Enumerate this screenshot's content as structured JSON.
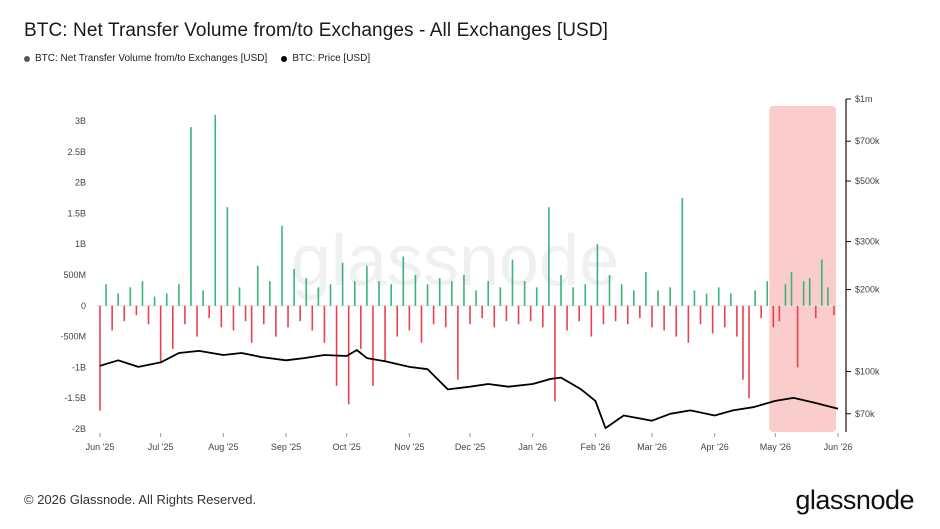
{
  "header": {
    "title": "BTC: Net Transfer Volume from/to Exchanges - All Exchanges [USD]"
  },
  "legend": [
    {
      "label": "BTC: Net Transfer Volume from/to Exchanges [USD]",
      "color": "#555555"
    },
    {
      "label": "BTC: Price [USD]",
      "color": "#000000"
    }
  ],
  "footer": {
    "copyright": "© 2026 Glassnode. All Rights Reserved.",
    "logo": "glassnode"
  },
  "watermark": "glassnode",
  "colors": {
    "positive": "#3cb37a",
    "negative": "#e8424d",
    "price": "#000000",
    "highlight": "#f9c3c3"
  },
  "chart_data": {
    "type": "bar",
    "title": "BTC: Net Transfer Volume from/to Exchanges - All Exchanges [USD]",
    "x_tick_labels": [
      "Jun '25",
      "Jul '25",
      "Aug '25",
      "Sep '25",
      "Oct '25",
      "Nov '25",
      "Dec '25",
      "Jan '26",
      "Feb '26",
      "Mar '26",
      "Apr '26",
      "May '26",
      "Jun '26"
    ],
    "x_range": [
      "2025-06-01",
      "2026-06-01"
    ],
    "y_left": {
      "ticks": [
        3000000000,
        2500000000,
        2000000000,
        1500000000,
        1000000000,
        500000000,
        0,
        -500000000,
        -1000000000,
        -1500000000,
        -2000000000
      ],
      "tick_labels": [
        "3B",
        "2.5B",
        "2B",
        "1.5B",
        "1B",
        "500M",
        "0",
        "-500M",
        "-1B",
        "-1.5B",
        "-2B"
      ],
      "range": [
        -2000000000,
        3000000000
      ]
    },
    "y_right": {
      "scale": "log",
      "ticks": [
        1000000,
        700000,
        500000,
        300000,
        200000,
        100000,
        70000
      ],
      "tick_labels": [
        "$1m",
        "$700k",
        "$500k",
        "$300k",
        "$200k",
        "$100k",
        "$70k"
      ],
      "range": [
        60000,
        1000000
      ]
    },
    "highlight_range": [
      "2026-05-01",
      "2026-06-01"
    ],
    "series": [
      {
        "name": "BTC: Net Transfer Volume from/to Exchanges [USD]",
        "type": "bar",
        "axis": "left",
        "x": [
          "2025-06-01",
          "2025-06-04",
          "2025-06-07",
          "2025-06-10",
          "2025-06-13",
          "2025-06-16",
          "2025-06-19",
          "2025-06-22",
          "2025-06-25",
          "2025-06-28",
          "2025-07-01",
          "2025-07-04",
          "2025-07-07",
          "2025-07-10",
          "2025-07-13",
          "2025-07-16",
          "2025-07-19",
          "2025-07-22",
          "2025-07-25",
          "2025-07-28",
          "2025-07-31",
          "2025-08-03",
          "2025-08-06",
          "2025-08-09",
          "2025-08-12",
          "2025-08-15",
          "2025-08-18",
          "2025-08-21",
          "2025-08-24",
          "2025-08-27",
          "2025-08-30",
          "2025-09-02",
          "2025-09-05",
          "2025-09-08",
          "2025-09-11",
          "2025-09-14",
          "2025-09-17",
          "2025-09-20",
          "2025-09-23",
          "2025-09-26",
          "2025-09-29",
          "2025-10-02",
          "2025-10-05",
          "2025-10-08",
          "2025-10-11",
          "2025-10-14",
          "2025-10-17",
          "2025-10-20",
          "2025-10-23",
          "2025-10-26",
          "2025-10-29",
          "2025-11-01",
          "2025-11-04",
          "2025-11-07",
          "2025-11-10",
          "2025-11-13",
          "2025-11-16",
          "2025-11-19",
          "2025-11-22",
          "2025-11-25",
          "2025-11-28",
          "2025-12-01",
          "2025-12-04",
          "2025-12-07",
          "2025-12-10",
          "2025-12-13",
          "2025-12-16",
          "2025-12-19",
          "2025-12-22",
          "2025-12-25",
          "2025-12-28",
          "2025-12-31",
          "2026-01-03",
          "2026-01-06",
          "2026-01-09",
          "2026-01-12",
          "2026-01-15",
          "2026-01-18",
          "2026-01-21",
          "2026-01-24",
          "2026-01-27",
          "2026-01-30",
          "2026-02-02",
          "2026-02-05",
          "2026-02-08",
          "2026-02-11",
          "2026-02-14",
          "2026-02-17",
          "2026-02-20",
          "2026-02-23",
          "2026-02-26",
          "2026-03-01",
          "2026-03-04",
          "2026-03-07",
          "2026-03-10",
          "2026-03-13",
          "2026-03-16",
          "2026-03-19",
          "2026-03-22",
          "2026-03-25",
          "2026-03-28",
          "2026-03-31",
          "2026-04-03",
          "2026-04-06",
          "2026-04-09",
          "2026-04-12",
          "2026-04-15",
          "2026-04-18",
          "2026-04-21",
          "2026-04-24",
          "2026-04-27",
          "2026-04-30",
          "2026-05-03",
          "2026-05-06",
          "2026-05-09",
          "2026-05-12",
          "2026-05-15",
          "2026-05-18",
          "2026-05-21",
          "2026-05-24",
          "2026-05-27",
          "2026-05-30"
        ],
        "values": [
          -1700000000,
          350000000,
          -400000000,
          200000000,
          -250000000,
          300000000,
          -150000000,
          400000000,
          -300000000,
          150000000,
          -900000000,
          200000000,
          -700000000,
          350000000,
          -300000000,
          2900000000,
          -500000000,
          250000000,
          -200000000,
          3100000000,
          -350000000,
          1600000000,
          -400000000,
          300000000,
          -250000000,
          -600000000,
          650000000,
          -300000000,
          400000000,
          -500000000,
          1300000000,
          -350000000,
          600000000,
          -250000000,
          450000000,
          -400000000,
          300000000,
          -600000000,
          350000000,
          -1300000000,
          700000000,
          -1600000000,
          400000000,
          -700000000,
          650000000,
          -1300000000,
          400000000,
          -900000000,
          350000000,
          -500000000,
          800000000,
          -400000000,
          500000000,
          -600000000,
          350000000,
          -300000000,
          450000000,
          -350000000,
          400000000,
          -1200000000,
          500000000,
          -300000000,
          250000000,
          -200000000,
          400000000,
          -350000000,
          300000000,
          -250000000,
          750000000,
          -300000000,
          400000000,
          -250000000,
          300000000,
          -350000000,
          1600000000,
          -1550000000,
          500000000,
          -400000000,
          300000000,
          -250000000,
          350000000,
          -500000000,
          1000000000,
          -300000000,
          500000000,
          -250000000,
          350000000,
          -300000000,
          250000000,
          -200000000,
          550000000,
          -350000000,
          250000000,
          -400000000,
          300000000,
          -500000000,
          1750000000,
          -600000000,
          250000000,
          -300000000,
          200000000,
          -450000000,
          300000000,
          -350000000,
          200000000,
          -500000000,
          -1200000000,
          -1500000000,
          250000000,
          -200000000,
          400000000,
          -350000000,
          -250000000,
          350000000,
          550000000,
          -1000000000,
          400000000,
          450000000,
          -200000000,
          750000000,
          300000000,
          -150000000
        ],
        "color_positive": "#3cb37a",
        "color_negative": "#e8424d"
      },
      {
        "name": "BTC: Price [USD]",
        "type": "line",
        "axis": "right",
        "x": [
          "2025-06-01",
          "2025-06-10",
          "2025-06-20",
          "2025-07-01",
          "2025-07-10",
          "2025-07-20",
          "2025-08-01",
          "2025-08-10",
          "2025-08-20",
          "2025-09-01",
          "2025-09-10",
          "2025-09-20",
          "2025-10-01",
          "2025-10-06",
          "2025-10-11",
          "2025-10-20",
          "2025-11-01",
          "2025-11-10",
          "2025-11-20",
          "2025-12-01",
          "2025-12-10",
          "2025-12-20",
          "2026-01-01",
          "2026-01-10",
          "2026-01-15",
          "2026-01-25",
          "2026-02-01",
          "2026-02-06",
          "2026-02-15",
          "2026-03-01",
          "2026-03-10",
          "2026-03-20",
          "2026-04-01",
          "2026-04-10",
          "2026-04-20",
          "2026-05-01",
          "2026-05-10",
          "2026-05-20",
          "2026-06-01"
        ],
        "values": [
          105000,
          110000,
          104000,
          108000,
          117000,
          119000,
          115000,
          117000,
          113000,
          110000,
          112000,
          115000,
          114000,
          120000,
          112000,
          109000,
          104000,
          102000,
          86000,
          88000,
          90000,
          88000,
          90000,
          94000,
          95000,
          86000,
          78000,
          62000,
          69000,
          66000,
          70000,
          72000,
          69000,
          72000,
          74000,
          78000,
          80000,
          77000,
          73000
        ]
      }
    ]
  }
}
